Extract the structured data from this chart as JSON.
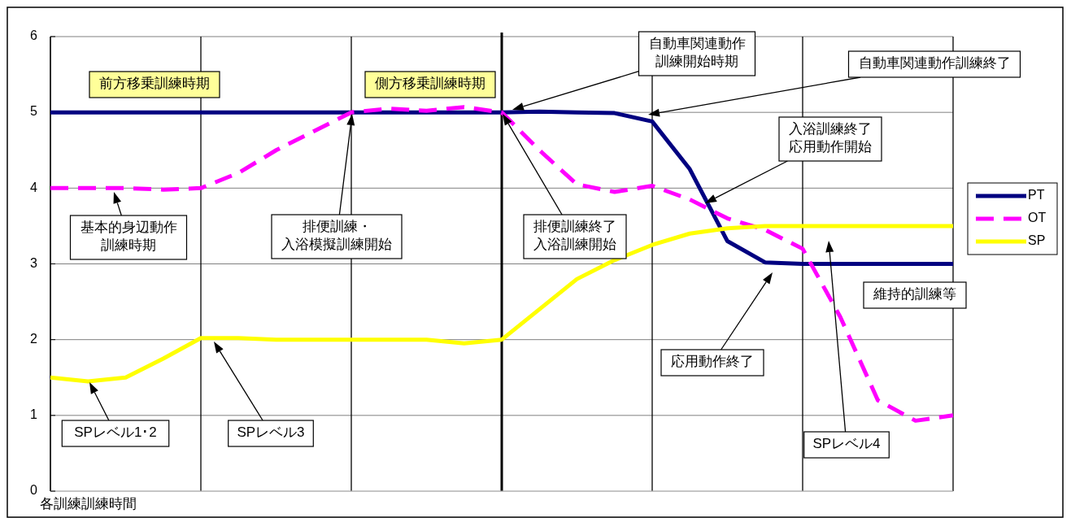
{
  "chart_data": {
    "type": "line",
    "xlabel": "各訓練訓練時間",
    "categories": [
      null,
      null,
      null,
      null,
      null,
      null,
      null,
      null,
      null,
      null,
      null,
      null,
      null,
      null,
      null,
      null,
      null,
      null,
      null,
      null,
      null,
      null,
      null,
      null,
      null
    ],
    "ylim": [
      0,
      6
    ],
    "yticks": [
      0,
      1,
      2,
      3,
      4,
      5,
      6
    ],
    "grid": true,
    "legend": "right",
    "tick_labels": "y",
    "series": [
      {
        "name": "PT",
        "color": "#000080",
        "line_style": "solid",
        "values": [
          5,
          5,
          5,
          5,
          5,
          5,
          5,
          5,
          5,
          5,
          5,
          5,
          5,
          5.01,
          5.0,
          4.99,
          4.88,
          4.25,
          3.3,
          3.02,
          3,
          3,
          3,
          3,
          3
        ]
      },
      {
        "name": "OT",
        "color": "#ff00ff",
        "line_style": "dashed",
        "values": [
          4,
          4,
          4,
          3.98,
          4.0,
          4.2,
          4.5,
          4.75,
          5.0,
          5.05,
          5.02,
          5.07,
          5.0,
          4.5,
          4.05,
          3.95,
          4.03,
          3.85,
          3.6,
          3.45,
          3.2,
          2.3,
          1.2,
          0.93,
          1.0
        ]
      },
      {
        "name": "SP",
        "color": "#ffff00",
        "line_style": "solid",
        "values": [
          1.5,
          1.45,
          1.5,
          1.75,
          2.02,
          2.02,
          2.0,
          2.0,
          2.0,
          2.0,
          2.0,
          1.95,
          2.0,
          2.4,
          2.8,
          3.05,
          3.25,
          3.4,
          3.47,
          3.5,
          3.5,
          3.5,
          3.5,
          3.5,
          3.5
        ]
      }
    ],
    "annotations": [
      "前方移乗訓練時期",
      "側方移乗訓練時期",
      "基本的身辺動作訓練時期",
      "排便訓練・入浴模擬訓練開始",
      "排便訓練終了入浴訓練開始",
      "自動車関連動作訓練開始時期",
      "自動車関連動作訓練終了",
      "入浴訓練終了応用動作開始",
      "応用動作終了",
      "維持的訓練等",
      "SPレベル1･2",
      "SPレベル3",
      "SPレベル4"
    ]
  }
}
